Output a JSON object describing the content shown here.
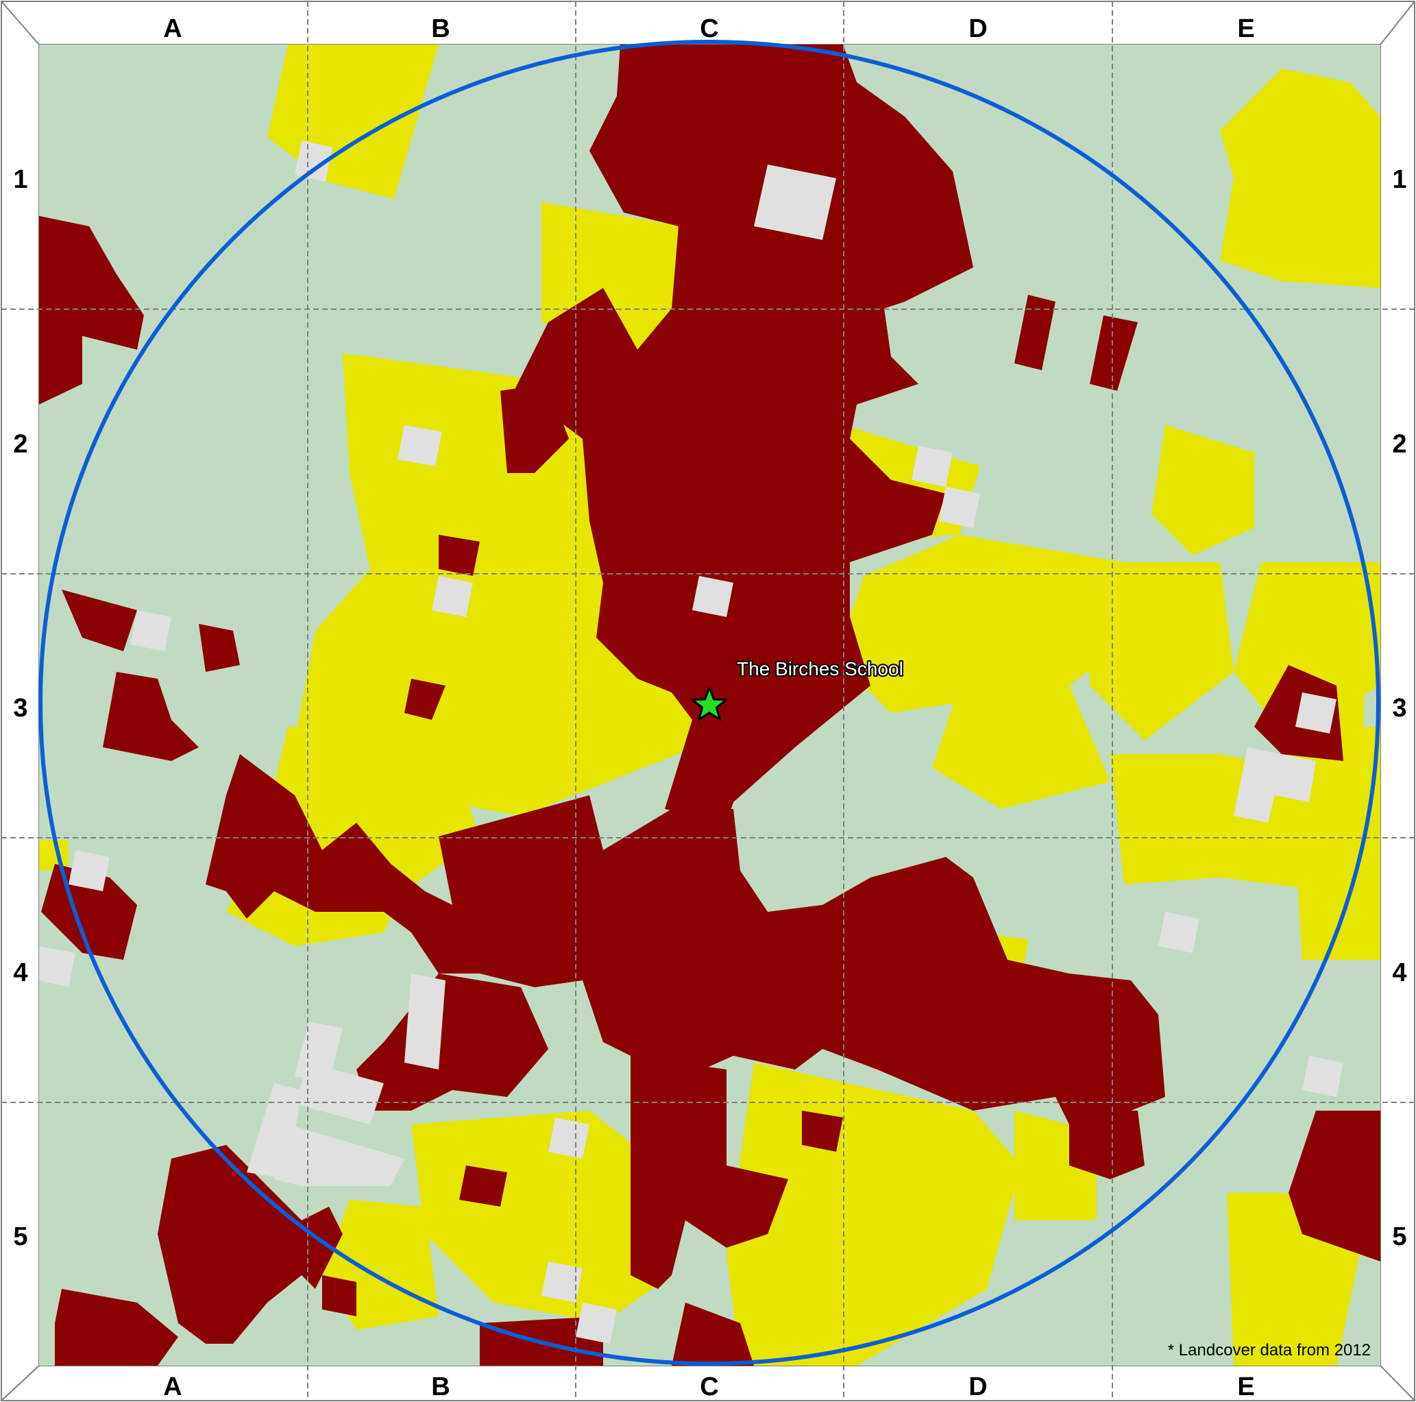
{
  "map": {
    "columns": [
      "A",
      "B",
      "C",
      "D",
      "E"
    ],
    "rows": [
      "1",
      "2",
      "3",
      "4",
      "5"
    ],
    "school_name": "The Birches School",
    "footnote": "* Landcover data from 2012",
    "icons": {
      "school_marker": "star-icon",
      "radius_ring": "circle-outline"
    },
    "colors": {
      "grass": "#c0dbc2",
      "developed": "#8b0000",
      "cultivated": "#e6e600",
      "barren": "#e0e0e0",
      "ring": "#0b5ed7",
      "star_fill": "#22dd22",
      "gridline": "#808080"
    }
  }
}
